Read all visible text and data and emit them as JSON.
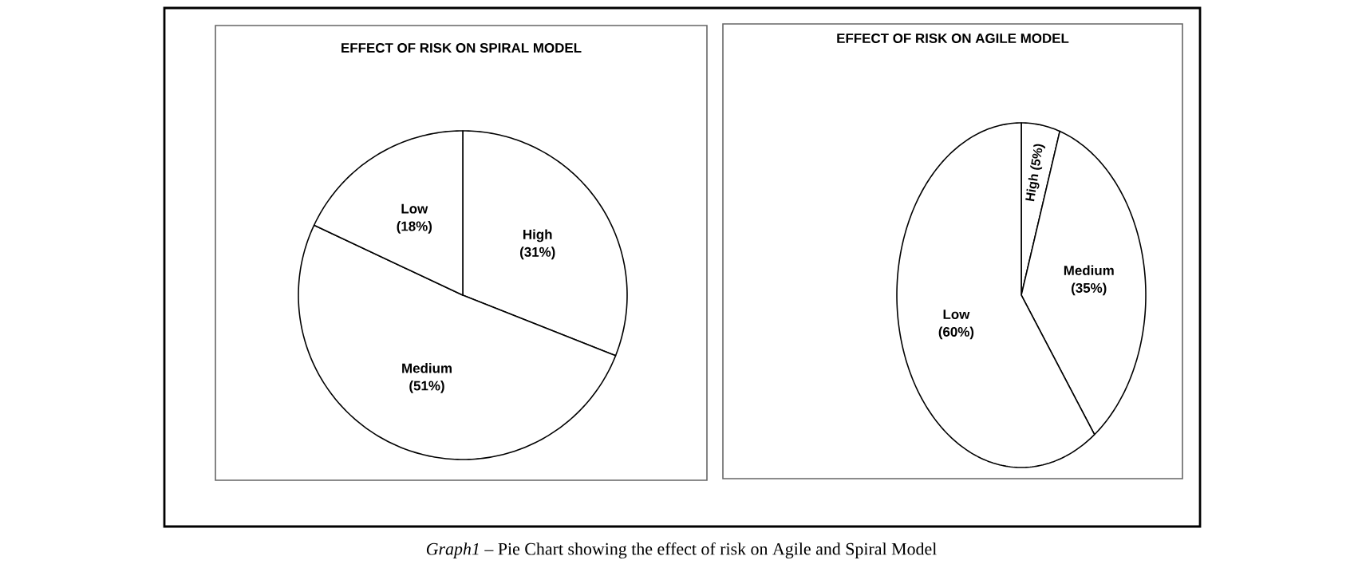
{
  "chart_data": [
    {
      "type": "pie",
      "title": "EFFECT OF RISK ON SPIRAL MODEL",
      "categories": [
        "High",
        "Medium",
        "Low"
      ],
      "values": [
        31,
        51,
        18
      ],
      "value_labels": [
        "(31%)",
        "(51%)",
        "(18%)"
      ],
      "colors": [
        "#ffffff",
        "#ffffff",
        "#ffffff"
      ],
      "annotations": [
        "*Graph1* – Pie Chart showing the effect of risk on Agile and Spiral Model"
      ]
    },
    {
      "type": "pie",
      "title": "EFFECT OF RISK ON AGILE MODEL",
      "categories": [
        "High",
        "Medium",
        "Low"
      ],
      "values": [
        5,
        35,
        60
      ],
      "value_labels": [
        "(5%)",
        "(35%)",
        "(60%)"
      ],
      "colors": [
        "#ffffff",
        "#ffffff",
        "#ffffff"
      ]
    }
  ]
}
